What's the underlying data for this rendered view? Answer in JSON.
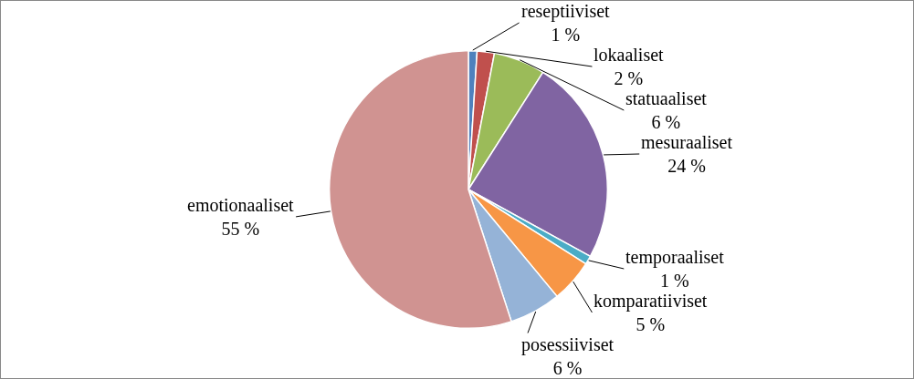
{
  "chart_data": {
    "type": "pie",
    "categories": [
      "reseptiiviset",
      "lokaaliset",
      "statuaaliset",
      "mesuraaliset",
      "temporaaliset",
      "komparatiiviset",
      "posessiiviset",
      "emotionaaliset"
    ],
    "values": [
      1,
      2,
      6,
      24,
      1,
      5,
      6,
      55
    ],
    "value_labels": [
      "1 %",
      "2 %",
      "6 %",
      "24 %",
      "1 %",
      "5 %",
      "6 %",
      "55 %"
    ],
    "colors": [
      "#4f81bd",
      "#c0504d",
      "#9bbb59",
      "#8064a2",
      "#4bacc6",
      "#f79646",
      "#95b3d7",
      "#d09391"
    ],
    "legend": false
  }
}
